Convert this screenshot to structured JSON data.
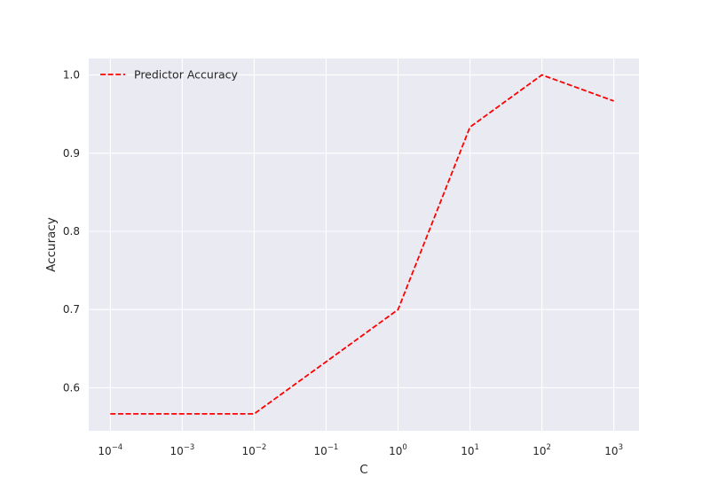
{
  "chart_data": {
    "type": "line",
    "title": "",
    "xlabel": "C",
    "ylabel": "Accuracy",
    "xscale": "log",
    "x_ticks": [
      {
        "exp": -4,
        "base": "10",
        "sup": "−4"
      },
      {
        "exp": -3,
        "base": "10",
        "sup": "−3"
      },
      {
        "exp": -2,
        "base": "10",
        "sup": "−2"
      },
      {
        "exp": -1,
        "base": "10",
        "sup": "−1"
      },
      {
        "exp": 0,
        "base": "10",
        "sup": "0"
      },
      {
        "exp": 1,
        "base": "10",
        "sup": "1"
      },
      {
        "exp": 2,
        "base": "10",
        "sup": "2"
      },
      {
        "exp": 3,
        "base": "10",
        "sup": "3"
      }
    ],
    "y_ticks": [
      {
        "value": 0.6,
        "label": "0.6"
      },
      {
        "value": 0.7,
        "label": "0.7"
      },
      {
        "value": 0.8,
        "label": "0.8"
      },
      {
        "value": 0.9,
        "label": "0.9"
      },
      {
        "value": 1.0,
        "label": "1.0"
      }
    ],
    "xlim_exp": [
      -4.3,
      3.35
    ],
    "ylim": [
      0.545,
      1.021
    ],
    "grid": true,
    "legend_position": "upper-left",
    "series": [
      {
        "name": "Predictor Accuracy",
        "color": "#ff0000",
        "linestyle": "dashed",
        "x": [
          0.0001,
          0.001,
          0.01,
          0.1,
          1,
          10,
          100,
          1000
        ],
        "y": [
          0.5667,
          0.5667,
          0.5667,
          0.6333,
          0.7,
          0.9333,
          1.0,
          0.9667
        ]
      }
    ],
    "colors": {
      "background": "#eaeaf2",
      "grid": "#ffffff",
      "text": "#262626"
    }
  }
}
